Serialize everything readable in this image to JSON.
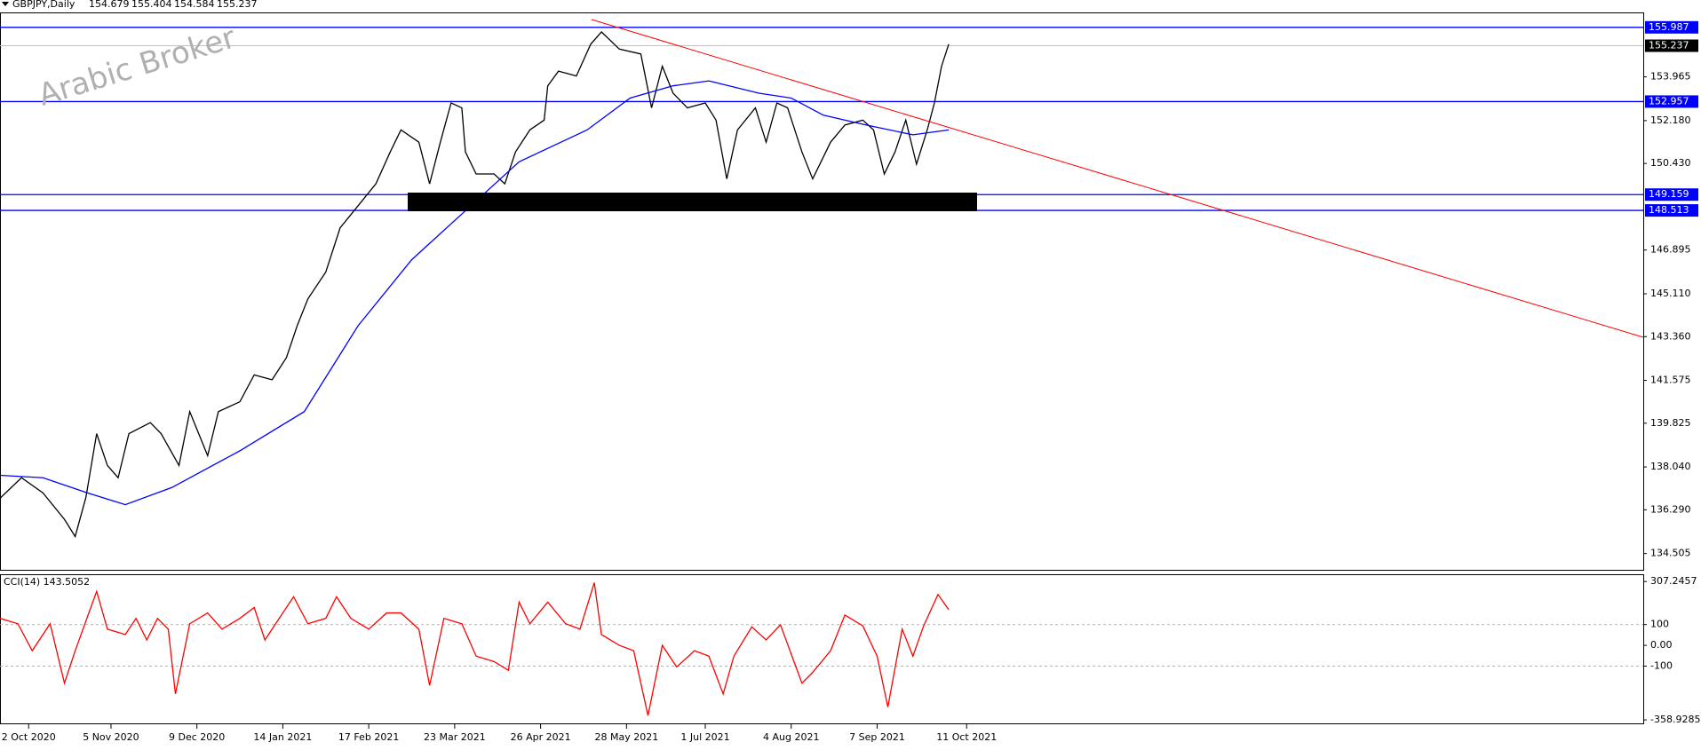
{
  "chart_data": [
    {
      "type": "line",
      "title": "GBPJPY,Daily",
      "ohlc": [
        154.679,
        155.404,
        154.584,
        155.237
      ],
      "watermark": "Arabic Broker",
      "xlim": [
        0,
        459
      ],
      "ylim": [
        133.84,
        156.56
      ],
      "yticks": [
        153.965,
        {
          "value": 152.18,
          "label": "152.180"
        },
        {
          "value": 150.43,
          "label": "150.430"
        },
        146.895,
        {
          "value": 145.11,
          "label": "145.110"
        },
        {
          "value": 143.36,
          "label": "143.360"
        },
        141.575,
        139.825,
        {
          "value": 138.04,
          "label": "138.040"
        },
        {
          "value": 136.29,
          "label": "136.290"
        },
        134.505
      ],
      "levels": [
        155.987,
        152.957,
        149.159,
        148.513
      ],
      "level_color": "#0000ff",
      "current_price": 155.237,
      "series": [
        {
          "color": "#000000",
          "x": [
            0,
            6,
            12,
            18,
            21,
            24,
            27,
            30,
            33,
            36,
            42,
            45,
            50,
            53,
            58,
            61,
            67,
            71,
            76,
            80,
            83,
            86,
            91,
            95,
            100,
            105,
            109,
            112,
            117,
            120,
            123,
            126,
            129,
            130,
            133,
            138,
            141,
            144,
            148,
            152,
            153,
            156,
            161,
            165,
            168,
            173,
            179,
            182,
            185,
            188,
            192,
            197,
            200,
            203,
            206,
            211,
            214,
            217,
            220,
            224,
            227,
            232,
            236,
            241,
            244,
            247,
            250,
            253,
            256,
            259,
            261,
            263,
            265
          ],
          "values": [
            136.76,
            137.6,
            136.98,
            135.9,
            135.2,
            136.8,
            139.4,
            138.1,
            137.6,
            139.4,
            139.85,
            139.4,
            138.1,
            140.3,
            138.5,
            140.3,
            140.7,
            141.8,
            141.6,
            142.5,
            143.8,
            144.9,
            146.0,
            147.8,
            148.7,
            149.6,
            150.9,
            151.8,
            151.3,
            149.6,
            151.3,
            152.9,
            152.7,
            150.9,
            150.0,
            150.0,
            149.6,
            150.9,
            151.8,
            152.2,
            153.6,
            154.2,
            154.0,
            155.3,
            155.8,
            155.1,
            154.9,
            152.7,
            154.4,
            153.3,
            152.7,
            152.9,
            152.2,
            149.8,
            151.8,
            152.7,
            151.3,
            152.9,
            152.7,
            150.9,
            149.8,
            151.3,
            152.0,
            152.2,
            151.8,
            150.0,
            150.9,
            152.2,
            150.4,
            151.8,
            152.9,
            154.4,
            155.3
          ]
        },
        {
          "color": "#0000ff",
          "x": [
            0,
            12,
            24,
            35,
            48,
            67,
            85,
            100,
            115,
            130,
            145,
            164,
            176,
            188,
            198,
            212,
            221,
            230,
            242,
            255,
            265
          ],
          "values": [
            137.7,
            137.6,
            137.0,
            136.5,
            137.2,
            138.7,
            140.3,
            143.8,
            146.5,
            148.5,
            150.5,
            151.8,
            153.1,
            153.6,
            153.8,
            153.3,
            153.1,
            152.4,
            152.0,
            151.6,
            151.8
          ]
        }
      ]
    },
    {
      "type": "line",
      "title": "CCI(14) 143.5052",
      "xlim": [
        0,
        459
      ],
      "ylim": [
        -380,
        338
      ],
      "yticks": [
        307.2457,
        100,
        {
          "value": 0,
          "label": "0.00"
        },
        -100,
        -358.9285
      ],
      "levels": [
        100,
        -100
      ],
      "xticks": [
        {
          "value": 8,
          "label": "2 Oct 2020"
        },
        {
          "value": 31,
          "label": "5 Nov 2020"
        },
        {
          "value": 55,
          "label": "9 Dec 2020"
        },
        {
          "value": 79,
          "label": "14 Jan 2021"
        },
        {
          "value": 103,
          "label": "17 Feb 2021"
        },
        {
          "value": 127,
          "label": "23 Mar 2021"
        },
        {
          "value": 151,
          "label": "26 Apr 2021"
        },
        {
          "value": 175,
          "label": "28 May 2021"
        },
        {
          "value": 197,
          "label": "1 Jul 2021"
        },
        {
          "value": 221,
          "label": "4 Aug 2021"
        },
        {
          "value": 245,
          "label": "7 Sep 2021"
        },
        {
          "value": 270,
          "label": "11 Oct 2021"
        }
      ],
      "series": [
        {
          "color": "#ff0000",
          "x": [
            0,
            5,
            9,
            14,
            18,
            21,
            27,
            30,
            35,
            38,
            41,
            44,
            47,
            49,
            53,
            58,
            62,
            67,
            71,
            74,
            78,
            82,
            86,
            91,
            94,
            98,
            103,
            108,
            112,
            117,
            120,
            124,
            129,
            133,
            138,
            142,
            145,
            148,
            153,
            158,
            162,
            166,
            168,
            173,
            177,
            181,
            185,
            189,
            194,
            198,
            202,
            205,
            210,
            214,
            218,
            224,
            227,
            232,
            236,
            241,
            245,
            248,
            252,
            255,
            258,
            262,
            265
          ],
          "values": [
            130,
            104,
            -26,
            104,
            -182,
            -26,
            260,
            78,
            52,
            130,
            26,
            130,
            78,
            -234,
            104,
            156,
            78,
            130,
            182,
            26,
            130,
            234,
            104,
            130,
            234,
            130,
            78,
            156,
            156,
            78,
            -193,
            130,
            104,
            -52,
            -78,
            -120,
            208,
            104,
            208,
            104,
            78,
            302,
            52,
            0,
            -26,
            -338,
            0,
            -104,
            -26,
            -52,
            -234,
            -52,
            89,
            26,
            99,
            -182,
            -130,
            -26,
            146,
            94,
            -52,
            -297,
            78,
            -52,
            94,
            245,
            172
          ]
        }
      ]
    }
  ]
}
